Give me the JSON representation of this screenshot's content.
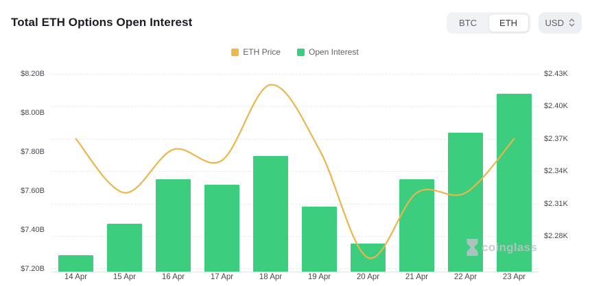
{
  "header": {
    "title": "Total ETH Options Open Interest",
    "asset_toggle": {
      "options": [
        "BTC",
        "ETH"
      ],
      "selected": "ETH"
    },
    "currency_selector": {
      "value": "USD"
    }
  },
  "legend": [
    {
      "label": "ETH Price",
      "color": "#ecb84d"
    },
    {
      "label": "Open Interest",
      "color": "#3dcd7e"
    }
  ],
  "watermark": {
    "text": "coinglass"
  },
  "chart_data": {
    "type": "bar+line combo, dual y-axis",
    "title": "Total ETH Options Open Interest",
    "categories": [
      "14 Apr",
      "15 Apr",
      "16 Apr",
      "17 Apr",
      "18 Apr",
      "19 Apr",
      "20 Apr",
      "21 Apr",
      "22 Apr",
      "23 Apr"
    ],
    "series": [
      {
        "name": "Open Interest",
        "type": "bar",
        "axis": "left",
        "unit": "USD billions",
        "color": "#3dcd7e",
        "values": [
          7.27,
          7.43,
          7.66,
          7.63,
          7.78,
          7.52,
          7.33,
          7.66,
          7.9,
          8.1
        ]
      },
      {
        "name": "ETH Price",
        "type": "line",
        "axis": "right",
        "unit": "USD thousands",
        "color": "#eab54a",
        "values": [
          2.37,
          2.32,
          2.36,
          2.35,
          2.42,
          2.36,
          2.26,
          2.32,
          2.32,
          2.37
        ]
      }
    ],
    "left_axis": {
      "ticks": [
        "$8.20B",
        "$8.00B",
        "$7.80B",
        "$7.60B",
        "$7.40B",
        "$7.20B"
      ],
      "max": 8.2,
      "min": 7.2
    },
    "right_axis": {
      "ticks": [
        "$2.43K",
        "$2.40K",
        "$2.37K",
        "$2.34K",
        "$2.31K",
        "$2.28K"
      ],
      "max": 2.43,
      "min_label": 2.28
    },
    "grid": "horizontal dashed gridlines, smooth spline line drawn over bars",
    "legend_position": "top center"
  }
}
